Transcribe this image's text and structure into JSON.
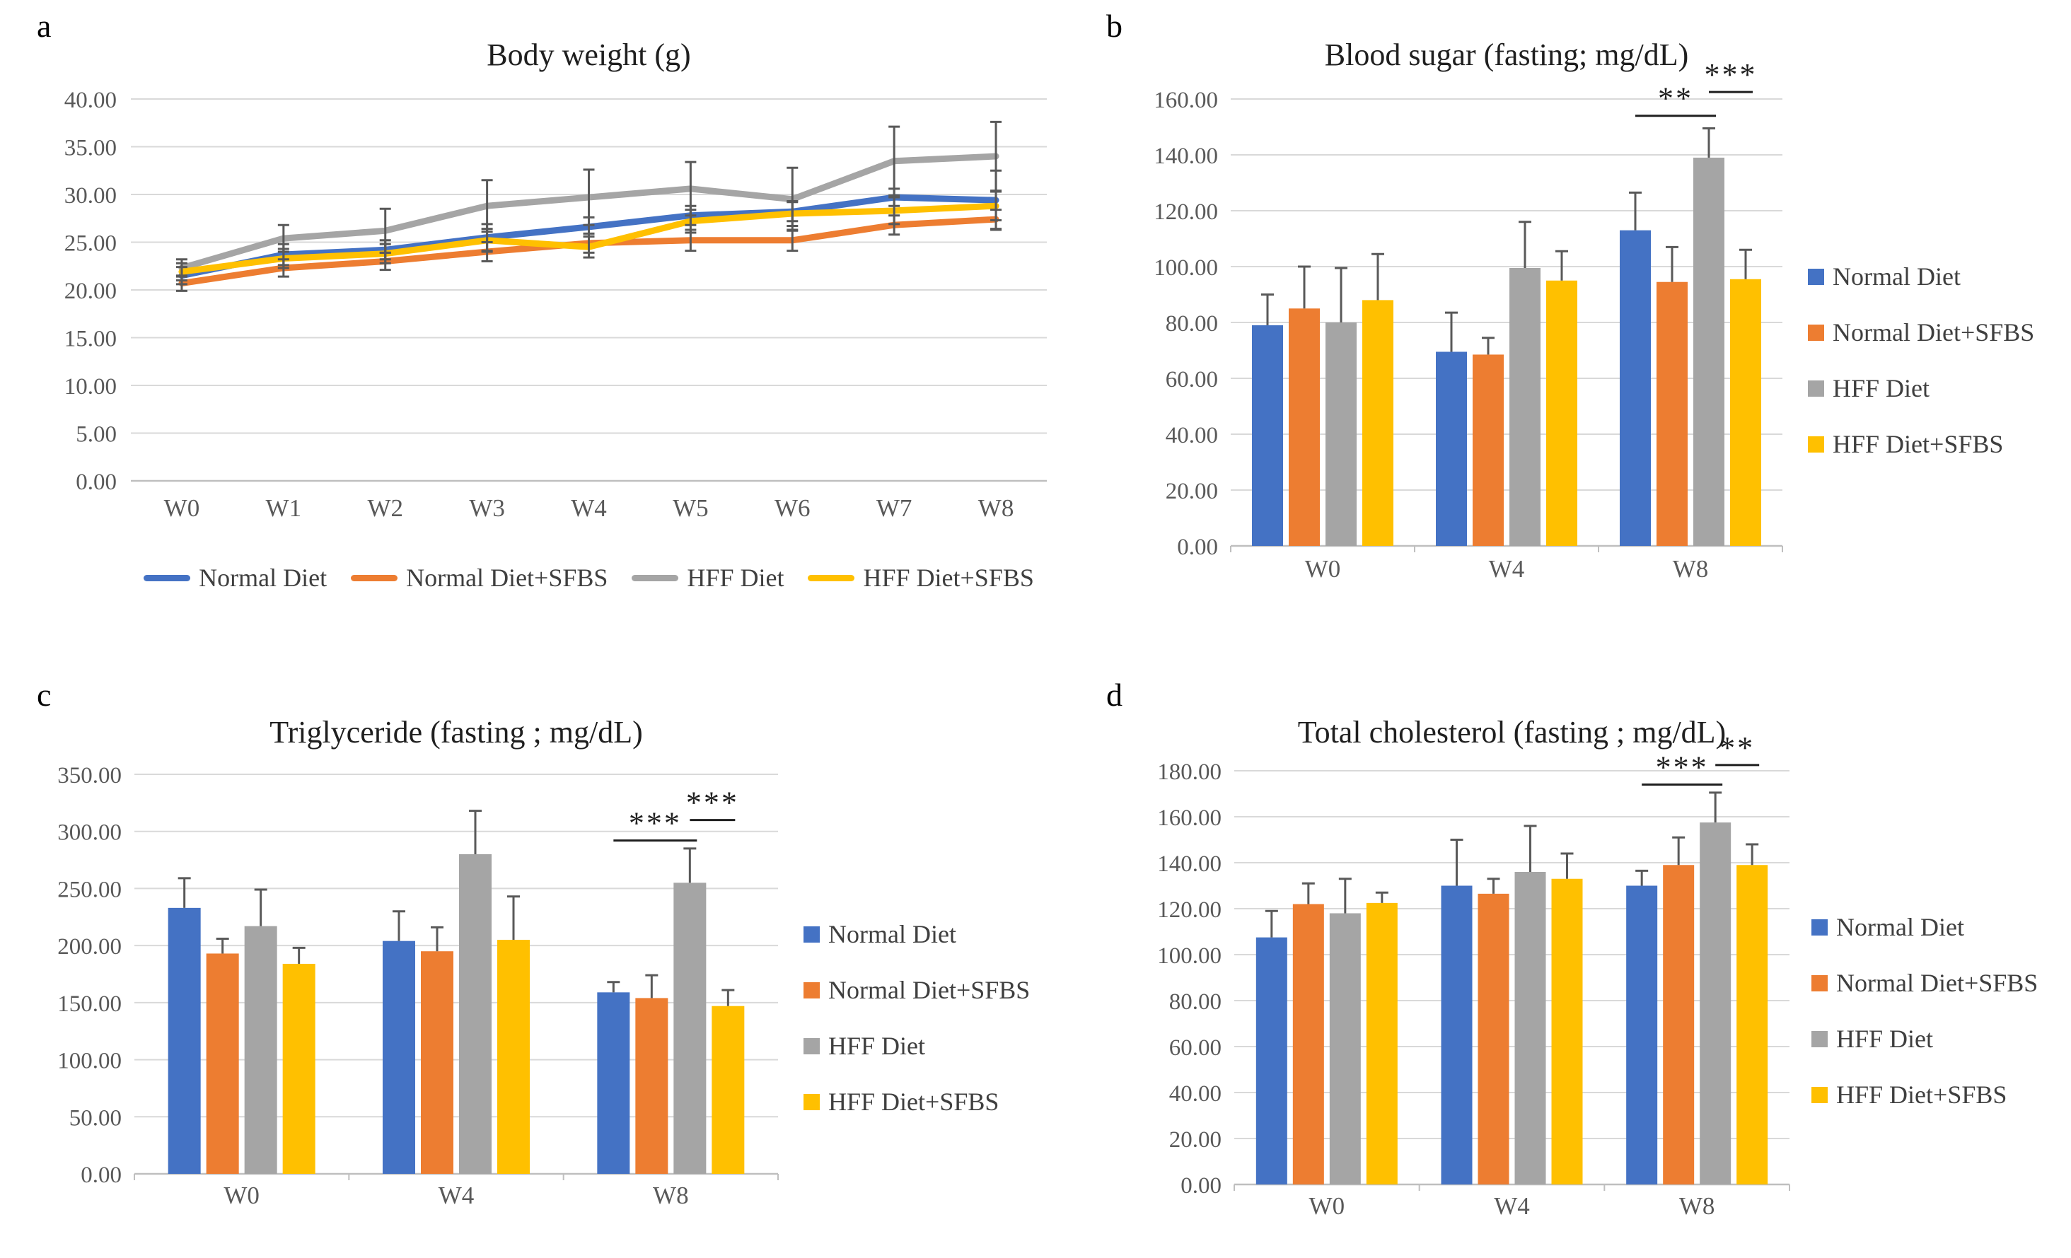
{
  "colors": {
    "normal_diet": "#4472C4",
    "normal_diet_sfbs": "#ED7D31",
    "hff_diet": "#A5A5A5",
    "hff_diet_sfbs": "#FFC000",
    "error_bar": "#595959",
    "gridline": "#D9D9D9",
    "axis": "#BFBFBF",
    "tick_text": "#595959",
    "title_text": "#1f1f1f",
    "significance": "#1f1f1f"
  },
  "chart_data": [
    {
      "panel_label": "a",
      "type": "line",
      "title": "Body weight (g)",
      "categories": [
        "W0",
        "W1",
        "W2",
        "W3",
        "W4",
        "W5",
        "W6",
        "W7",
        "W8"
      ],
      "ylim": [
        0,
        40
      ],
      "ystep": 5,
      "ytick_labels": [
        "40.00",
        "35.00",
        "30.00",
        "25.00",
        "20.00",
        "15.00",
        "10.00",
        "5.00",
        "0.00"
      ],
      "legend_position": "bottom",
      "grid": true,
      "series": [
        {
          "name": "Normal Diet",
          "color": "#4472C4",
          "values": [
            21.5,
            23.7,
            24.2,
            25.5,
            26.6,
            27.8,
            28.2,
            29.7,
            29.4
          ],
          "errors": [
            0.9,
            1.1,
            1.0,
            1.4,
            1.0,
            1.0,
            1.0,
            0.9,
            3.1
          ]
        },
        {
          "name": "Normal Diet+SFBS",
          "color": "#ED7D31",
          "values": [
            20.7,
            22.3,
            23.0,
            24.0,
            24.9,
            25.2,
            25.2,
            26.8,
            27.4
          ],
          "errors": [
            0.8,
            0.9,
            0.9,
            1.0,
            1.0,
            1.1,
            1.1,
            1.0,
            1.0
          ]
        },
        {
          "name": "HFF Diet",
          "color": "#A5A5A5",
          "values": [
            22.3,
            25.4,
            26.2,
            28.8,
            29.7,
            30.6,
            29.5,
            33.5,
            34.0
          ],
          "errors": [
            0.9,
            1.4,
            2.3,
            2.7,
            2.9,
            2.8,
            3.3,
            3.6,
            3.6
          ]
        },
        {
          "name": "HFF Diet+SFBS",
          "color": "#FFC000",
          "values": [
            21.9,
            23.3,
            23.8,
            25.2,
            24.5,
            27.2,
            28.0,
            28.3,
            28.8
          ],
          "errors": [
            0.9,
            1.0,
            1.0,
            1.2,
            1.1,
            1.2,
            1.3,
            1.4,
            1.5
          ]
        }
      ],
      "significance": []
    },
    {
      "panel_label": "b",
      "type": "bar",
      "title": "Blood sugar (fasting; mg/dL)",
      "categories": [
        "W0",
        "W4",
        "W8"
      ],
      "ylim": [
        0,
        160
      ],
      "ystep": 20,
      "ytick_labels": [
        "160.00",
        "140.00",
        "120.00",
        "100.00",
        "80.00",
        "60.00",
        "40.00",
        "20.00",
        "0.00"
      ],
      "legend_position": "right",
      "grid": true,
      "series": [
        {
          "name": "Normal Diet",
          "color": "#4472C4",
          "values": [
            79,
            69.5,
            113
          ],
          "errors": [
            11,
            14,
            13.5
          ]
        },
        {
          "name": "Normal Diet+SFBS",
          "color": "#ED7D31",
          "values": [
            85,
            68.5,
            94.5
          ],
          "errors": [
            15,
            6,
            12.5
          ]
        },
        {
          "name": "HFF Diet",
          "color": "#A5A5A5",
          "values": [
            80,
            99.5,
            139
          ],
          "errors": [
            19.5,
            16.5,
            10.5
          ]
        },
        {
          "name": "HFF Diet+SFBS",
          "color": "#FFC000",
          "values": [
            88,
            95,
            95.5
          ],
          "errors": [
            16.5,
            10.5,
            10.5
          ]
        }
      ],
      "significance": [
        {
          "text": "**",
          "category_index": 2,
          "from_series": 0,
          "to_series": 2,
          "y_value": 154
        },
        {
          "text": "***",
          "category_index": 2,
          "from_series": 2,
          "to_series": 3,
          "y_value": 162.5
        }
      ]
    },
    {
      "panel_label": "c",
      "type": "bar",
      "title": "Triglyceride (fasting ; mg/dL)",
      "categories": [
        "W0",
        "W4",
        "W8"
      ],
      "ylim": [
        0,
        350
      ],
      "ystep": 50,
      "ytick_labels": [
        "350.00",
        "300.00",
        "250.00",
        "200.00",
        "150.00",
        "100.00",
        "50.00",
        "0.00"
      ],
      "legend_position": "right",
      "grid": true,
      "series": [
        {
          "name": "Normal Diet",
          "color": "#4472C4",
          "values": [
            233,
            204,
            159
          ],
          "errors": [
            26,
            26,
            9
          ]
        },
        {
          "name": "Normal Diet+SFBS",
          "color": "#ED7D31",
          "values": [
            193,
            195,
            154
          ],
          "errors": [
            13,
            21,
            20
          ]
        },
        {
          "name": "HFF Diet",
          "color": "#A5A5A5",
          "values": [
            217,
            280,
            255
          ],
          "errors": [
            32,
            38,
            30
          ]
        },
        {
          "name": "HFF Diet+SFBS",
          "color": "#FFC000",
          "values": [
            184,
            205,
            147
          ],
          "errors": [
            14,
            38,
            14
          ]
        }
      ],
      "significance": [
        {
          "text": "***",
          "category_index": 2,
          "from_series": 0,
          "to_series": 2,
          "y_value": 292
        },
        {
          "text": "***",
          "category_index": 2,
          "from_series": 2,
          "to_series": 3,
          "y_value": 310
        }
      ]
    },
    {
      "panel_label": "d",
      "type": "bar",
      "title": "Total cholesterol (fasting ; mg/dL)",
      "categories": [
        "W0",
        "W4",
        "W8"
      ],
      "ylim": [
        0,
        180
      ],
      "ystep": 20,
      "ytick_labels": [
        "180.00",
        "160.00",
        "140.00",
        "120.00",
        "100.00",
        "80.00",
        "60.00",
        "40.00",
        "20.00",
        "0.00"
      ],
      "legend_position": "right",
      "grid": true,
      "series": [
        {
          "name": "Normal Diet",
          "color": "#4472C4",
          "values": [
            107.5,
            130,
            130
          ],
          "errors": [
            11.5,
            20,
            6.5
          ]
        },
        {
          "name": "Normal Diet+SFBS",
          "color": "#ED7D31",
          "values": [
            122,
            126.5,
            139
          ],
          "errors": [
            9,
            6.5,
            12
          ]
        },
        {
          "name": "HFF Diet",
          "color": "#A5A5A5",
          "values": [
            118,
            136,
            157.5
          ],
          "errors": [
            15,
            20,
            13
          ]
        },
        {
          "name": "HFF Diet+SFBS",
          "color": "#FFC000",
          "values": [
            122.5,
            133,
            139
          ],
          "errors": [
            4.5,
            11,
            9
          ]
        }
      ],
      "significance": [
        {
          "text": "***",
          "category_index": 2,
          "from_series": 0,
          "to_series": 2,
          "y_value": 174
        },
        {
          "text": "**",
          "category_index": 2,
          "from_series": 2,
          "to_series": 3,
          "y_value": 182.5
        }
      ]
    }
  ]
}
